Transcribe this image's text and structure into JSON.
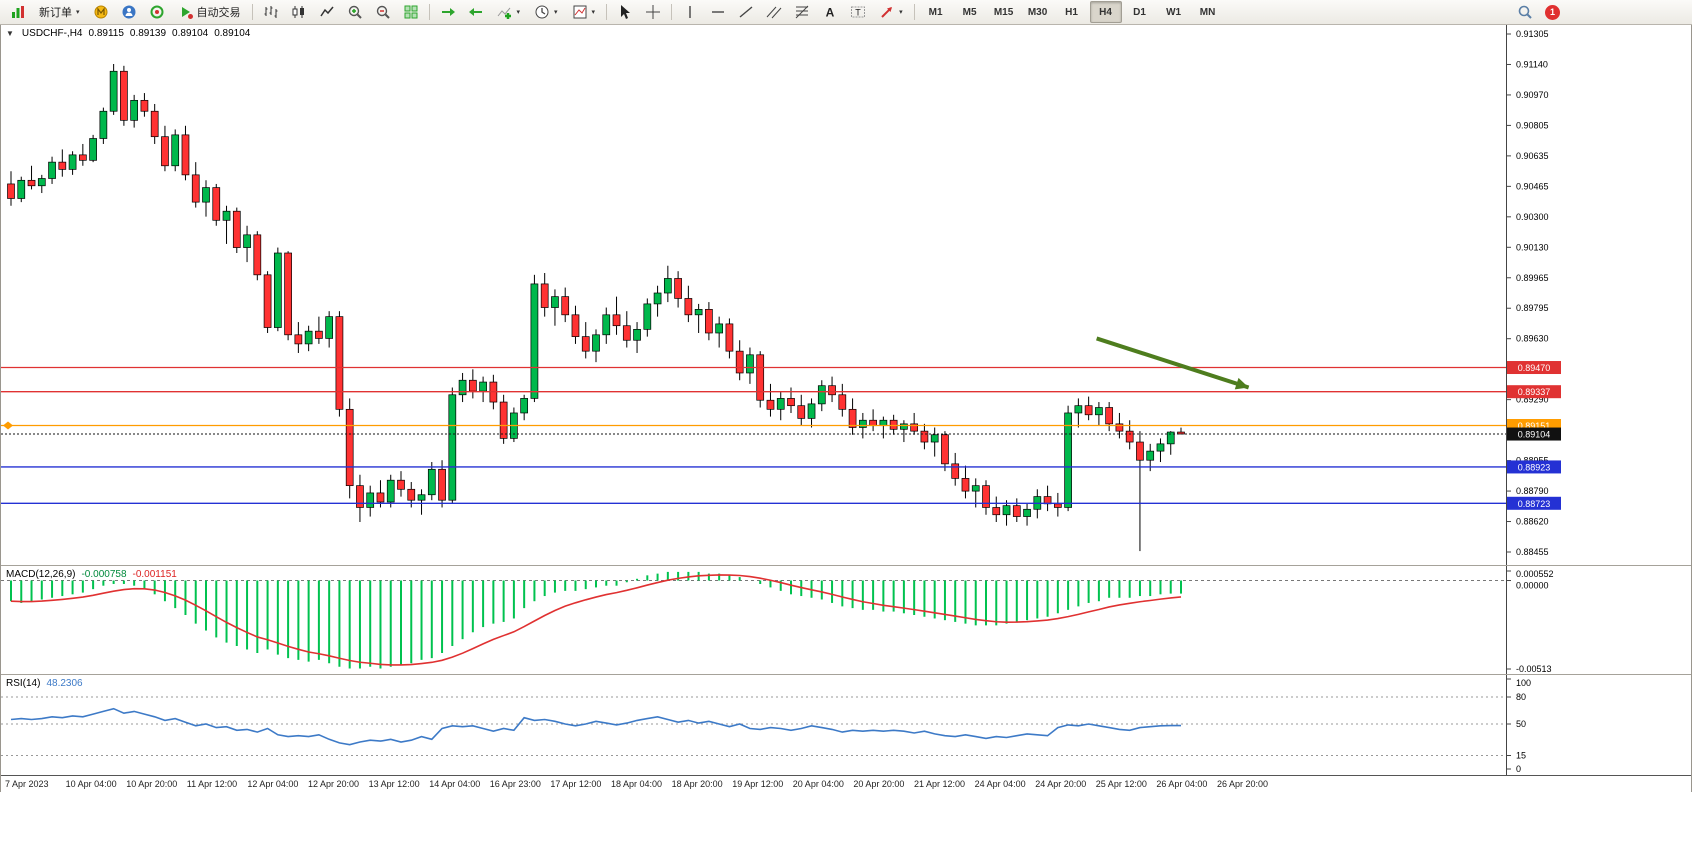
{
  "ui": {
    "caret": "▾",
    "symbol_dropdown": "▼"
  },
  "toolbar": {
    "new_order_label": "新订单",
    "autotrade_label": "自动交易",
    "timeframes": [
      "M1",
      "M5",
      "M15",
      "M30",
      "H1",
      "H4",
      "D1",
      "W1",
      "MN"
    ],
    "active_timeframe": "H4",
    "notification_count": "1",
    "icon_names": [
      "new-order-chart-icon",
      "mql-icon",
      "community-icon",
      "support-icon",
      "autotrade-icon",
      "bar-chart-icon",
      "candlestick-chart-icon",
      "line-chart-icon",
      "zoom-in-icon",
      "zoom-out-icon",
      "tile-windows-icon",
      "auto-scroll-icon",
      "chart-shift-icon",
      "indicators-icon",
      "periods-icon",
      "templates-icon",
      "cursor-icon",
      "crosshair-icon",
      "vertical-line-icon",
      "horizontal-line-icon",
      "trendline-icon",
      "channel-icon",
      "fibonacci-icon",
      "text-icon",
      "text-label-icon",
      "arrows-icon",
      "search-icon",
      "notification-badge"
    ]
  },
  "chart": {
    "symbol": "USDCHF-,H4",
    "ohlc": {
      "open": "0.89115",
      "high": "0.89139",
      "low": "0.89104",
      "close": "0.89104"
    }
  },
  "colors": {
    "candle_up": "#00b84c",
    "candle_down": "#ff3232",
    "candle_border": "#000000",
    "macd_histogram": "#00c24f",
    "macd_signal": "#e03131",
    "rsi_line": "#3d7ac7",
    "arrow": "#4e7d1e",
    "resistance_red": "#e03232",
    "order_orange": "#ff9c00",
    "support_blue": "#2431d4",
    "bid_black": "#111111"
  },
  "chart_data": {
    "type": "candlestick",
    "symbol": "USDCHF-",
    "timeframe": "H4",
    "price_scale": {
      "min": 0.88455,
      "max": 0.91305,
      "labels": [
        "0.91305",
        "0.91140",
        "0.90970",
        "0.90805",
        "0.90635",
        "0.90465",
        "0.90300",
        "0.90130",
        "0.89965",
        "0.89795",
        "0.89630",
        "0.89460",
        "0.89290",
        "0.89125",
        "0.88955",
        "0.88790",
        "0.88620",
        "0.88455"
      ]
    },
    "candles": [
      [
        0.9048,
        0.9055,
        0.9036,
        0.904
      ],
      [
        0.904,
        0.9052,
        0.9038,
        0.905
      ],
      [
        0.905,
        0.9058,
        0.9045,
        0.9047
      ],
      [
        0.9047,
        0.9053,
        0.9043,
        0.9051
      ],
      [
        0.9051,
        0.9063,
        0.9048,
        0.906
      ],
      [
        0.906,
        0.9067,
        0.9052,
        0.9056
      ],
      [
        0.9056,
        0.9066,
        0.9053,
        0.9064
      ],
      [
        0.9064,
        0.907,
        0.9058,
        0.9061
      ],
      [
        0.9061,
        0.9075,
        0.906,
        0.9073
      ],
      [
        0.9073,
        0.909,
        0.907,
        0.9088
      ],
      [
        0.9088,
        0.9114,
        0.9086,
        0.911
      ],
      [
        0.911,
        0.9113,
        0.908,
        0.9083
      ],
      [
        0.9083,
        0.9097,
        0.9079,
        0.9094
      ],
      [
        0.9094,
        0.9098,
        0.9085,
        0.9088
      ],
      [
        0.9088,
        0.9092,
        0.907,
        0.9074
      ],
      [
        0.9074,
        0.908,
        0.9055,
        0.9058
      ],
      [
        0.9058,
        0.9078,
        0.9055,
        0.9075
      ],
      [
        0.9075,
        0.908,
        0.905,
        0.9053
      ],
      [
        0.9053,
        0.906,
        0.9035,
        0.9038
      ],
      [
        0.9038,
        0.905,
        0.903,
        0.9046
      ],
      [
        0.9046,
        0.9048,
        0.9025,
        0.9028
      ],
      [
        0.9028,
        0.9036,
        0.9015,
        0.9033
      ],
      [
        0.9033,
        0.9035,
        0.901,
        0.9013
      ],
      [
        0.9013,
        0.9025,
        0.9005,
        0.902
      ],
      [
        0.902,
        0.9022,
        0.8995,
        0.8998
      ],
      [
        0.8998,
        0.9,
        0.8966,
        0.8969
      ],
      [
        0.8969,
        0.9013,
        0.8967,
        0.901
      ],
      [
        0.901,
        0.9011,
        0.8962,
        0.8965
      ],
      [
        0.8965,
        0.8972,
        0.8955,
        0.896
      ],
      [
        0.896,
        0.897,
        0.8956,
        0.8967
      ],
      [
        0.8967,
        0.8975,
        0.896,
        0.8963
      ],
      [
        0.8963,
        0.8978,
        0.8958,
        0.8975
      ],
      [
        0.8975,
        0.8978,
        0.892,
        0.8924
      ],
      [
        0.8924,
        0.893,
        0.8875,
        0.8882
      ],
      [
        0.8882,
        0.8888,
        0.8862,
        0.887
      ],
      [
        0.887,
        0.8882,
        0.8865,
        0.8878
      ],
      [
        0.8878,
        0.8885,
        0.887,
        0.8873
      ],
      [
        0.8873,
        0.8888,
        0.887,
        0.8885
      ],
      [
        0.8885,
        0.889,
        0.8876,
        0.888
      ],
      [
        0.888,
        0.8884,
        0.887,
        0.8874
      ],
      [
        0.8874,
        0.888,
        0.8866,
        0.8877
      ],
      [
        0.8877,
        0.8895,
        0.8874,
        0.8891
      ],
      [
        0.8891,
        0.8896,
        0.887,
        0.8874
      ],
      [
        0.8874,
        0.8936,
        0.8872,
        0.8932
      ],
      [
        0.8932,
        0.8944,
        0.8928,
        0.894
      ],
      [
        0.894,
        0.8946,
        0.893,
        0.8934
      ],
      [
        0.8934,
        0.8942,
        0.8928,
        0.8939
      ],
      [
        0.8939,
        0.8943,
        0.8924,
        0.8928
      ],
      [
        0.8928,
        0.8932,
        0.8905,
        0.8908
      ],
      [
        0.8908,
        0.8925,
        0.8906,
        0.8922
      ],
      [
        0.8922,
        0.8932,
        0.8918,
        0.893
      ],
      [
        0.893,
        0.8998,
        0.8928,
        0.8993
      ],
      [
        0.8993,
        0.8999,
        0.8975,
        0.898
      ],
      [
        0.898,
        0.899,
        0.897,
        0.8986
      ],
      [
        0.8986,
        0.8991,
        0.8972,
        0.8976
      ],
      [
        0.8976,
        0.8981,
        0.896,
        0.8964
      ],
      [
        0.8964,
        0.8972,
        0.8952,
        0.8956
      ],
      [
        0.8956,
        0.8968,
        0.895,
        0.8965
      ],
      [
        0.8965,
        0.898,
        0.896,
        0.8976
      ],
      [
        0.8976,
        0.8986,
        0.8965,
        0.897
      ],
      [
        0.897,
        0.8978,
        0.8958,
        0.8962
      ],
      [
        0.8962,
        0.8972,
        0.8955,
        0.8968
      ],
      [
        0.8968,
        0.8985,
        0.8964,
        0.8982
      ],
      [
        0.8982,
        0.8992,
        0.8975,
        0.8988
      ],
      [
        0.8988,
        0.9003,
        0.8983,
        0.8996
      ],
      [
        0.8996,
        0.9,
        0.898,
        0.8985
      ],
      [
        0.8985,
        0.8992,
        0.8972,
        0.8976
      ],
      [
        0.8976,
        0.8982,
        0.8966,
        0.8979
      ],
      [
        0.8979,
        0.8983,
        0.8962,
        0.8966
      ],
      [
        0.8966,
        0.8975,
        0.8958,
        0.8971
      ],
      [
        0.8971,
        0.8974,
        0.8952,
        0.8956
      ],
      [
        0.8956,
        0.8962,
        0.894,
        0.8944
      ],
      [
        0.8944,
        0.8958,
        0.8938,
        0.8954
      ],
      [
        0.8954,
        0.8956,
        0.8925,
        0.8929
      ],
      [
        0.8929,
        0.8938,
        0.892,
        0.8924
      ],
      [
        0.8924,
        0.8934,
        0.8918,
        0.893
      ],
      [
        0.893,
        0.8936,
        0.8922,
        0.8926
      ],
      [
        0.8926,
        0.8932,
        0.8915,
        0.8919
      ],
      [
        0.8919,
        0.893,
        0.8914,
        0.8927
      ],
      [
        0.8927,
        0.894,
        0.8923,
        0.8937
      ],
      [
        0.8937,
        0.8942,
        0.8928,
        0.8932
      ],
      [
        0.8932,
        0.8938,
        0.892,
        0.8924
      ],
      [
        0.8924,
        0.893,
        0.891,
        0.8914
      ],
      [
        0.8914,
        0.8922,
        0.8908,
        0.8918
      ],
      [
        0.8918,
        0.8924,
        0.8912,
        0.8915
      ],
      [
        0.8915,
        0.892,
        0.8908,
        0.8918
      ],
      [
        0.8918,
        0.8921,
        0.891,
        0.8913
      ],
      [
        0.8913,
        0.8918,
        0.8906,
        0.8916
      ],
      [
        0.8916,
        0.8922,
        0.891,
        0.8912
      ],
      [
        0.8912,
        0.8916,
        0.8902,
        0.8906
      ],
      [
        0.8906,
        0.8914,
        0.8898,
        0.891
      ],
      [
        0.891,
        0.8912,
        0.889,
        0.8894
      ],
      [
        0.8894,
        0.89,
        0.8882,
        0.8886
      ],
      [
        0.8886,
        0.8893,
        0.8875,
        0.8879
      ],
      [
        0.8879,
        0.8886,
        0.887,
        0.8882
      ],
      [
        0.8882,
        0.8885,
        0.8866,
        0.887
      ],
      [
        0.887,
        0.8876,
        0.8862,
        0.8866
      ],
      [
        0.8866,
        0.8874,
        0.886,
        0.8871
      ],
      [
        0.8871,
        0.8875,
        0.8862,
        0.8865
      ],
      [
        0.8865,
        0.8872,
        0.886,
        0.8869
      ],
      [
        0.8869,
        0.888,
        0.8864,
        0.8876
      ],
      [
        0.8876,
        0.8882,
        0.8868,
        0.8872
      ],
      [
        0.8872,
        0.8878,
        0.8865,
        0.887
      ],
      [
        0.887,
        0.8926,
        0.8868,
        0.8922
      ],
      [
        0.8922,
        0.893,
        0.8914,
        0.8926
      ],
      [
        0.8926,
        0.8931,
        0.8918,
        0.8921
      ],
      [
        0.8921,
        0.8928,
        0.8915,
        0.8925
      ],
      [
        0.8925,
        0.8928,
        0.8912,
        0.8916
      ],
      [
        0.8916,
        0.8922,
        0.8908,
        0.8912
      ],
      [
        0.8912,
        0.8918,
        0.8902,
        0.8906
      ],
      [
        0.8906,
        0.8912,
        0.8846,
        0.8896
      ],
      [
        0.8896,
        0.8905,
        0.889,
        0.8901
      ],
      [
        0.8901,
        0.8908,
        0.8895,
        0.8905
      ],
      [
        0.8905,
        0.8912,
        0.8899,
        0.89115
      ],
      [
        0.89115,
        0.89139,
        0.89104,
        0.89104
      ]
    ],
    "hlines": [
      {
        "price": 0.8947,
        "label": "0.89470",
        "color": "#e03232",
        "style": "solid"
      },
      {
        "price": 0.89337,
        "label": "0.89337",
        "color": "#e03232",
        "style": "solid"
      },
      {
        "price": 0.89151,
        "label": "0.89151",
        "color": "#ff9c00",
        "style": "solid"
      },
      {
        "price": 0.89104,
        "label": "0.89104",
        "color": "#111111",
        "style": "dotted"
      },
      {
        "price": 0.88923,
        "label": "0.88923",
        "color": "#2431d4",
        "style": "solid"
      },
      {
        "price": 0.88723,
        "label": "0.88723",
        "color": "#2431d4",
        "style": "solid"
      }
    ],
    "arrow": {
      "from_price": 0.8963,
      "to_price": 0.8936,
      "from_x_frac": 0.728,
      "to_x_frac": 0.829,
      "color": "#4e7d1e"
    },
    "time_labels": [
      "7 Apr 2023",
      "10 Apr 04:00",
      "10 Apr 20:00",
      "11 Apr 12:00",
      "12 Apr 04:00",
      "12 Apr 20:00",
      "13 Apr 12:00",
      "14 Apr 04:00",
      "16 Apr 23:00",
      "17 Apr 12:00",
      "18 Apr 04:00",
      "18 Apr 20:00",
      "19 Apr 12:00",
      "20 Apr 04:00",
      "20 Apr 20:00",
      "21 Apr 12:00",
      "24 Apr 04:00",
      "24 Apr 20:00",
      "25 Apr 12:00",
      "26 Apr 04:00",
      "26 Apr 20:00"
    ],
    "macd": {
      "name": "MACD(12,26,9)",
      "value": "-0.000758",
      "signal_value": "-0.001151",
      "max": 0.000552,
      "min": -0.00513,
      "scale_labels": [
        {
          "text": "0.000552",
          "value": 0.000552
        },
        {
          "text": "0.00000",
          "value": 0
        },
        {
          "text": "-0.00513",
          "value": -0.00513
        }
      ],
      "histogram": [
        -0.0012,
        -0.0013,
        -0.0012,
        -0.0011,
        -0.001,
        -0.0009,
        -0.0008,
        -0.0007,
        -0.0005,
        -0.0003,
        -0.0002,
        -0.0002,
        -0.0003,
        -0.0005,
        -0.0008,
        -0.0012,
        -0.0016,
        -0.002,
        -0.0025,
        -0.0029,
        -0.0033,
        -0.0036,
        -0.0038,
        -0.004,
        -0.0042,
        -0.004,
        -0.0043,
        -0.0045,
        -0.0046,
        -0.0047,
        -0.0046,
        -0.0048,
        -0.005,
        -0.0051,
        -0.0051,
        -0.005,
        -0.0051,
        -0.005,
        -0.0049,
        -0.0048,
        -0.0046,
        -0.0045,
        -0.0042,
        -0.0038,
        -0.0034,
        -0.003,
        -0.0027,
        -0.0025,
        -0.0024,
        -0.0022,
        -0.0016,
        -0.0012,
        -0.0009,
        -0.0007,
        -0.0006,
        -0.0006,
        -0.0005,
        -0.0004,
        -0.0003,
        -0.0003,
        -0.0001,
        0.0001,
        0.0003,
        0.0004,
        0.0005,
        0.0005,
        0.0005,
        0.0005,
        0.0004,
        0.0004,
        0.0003,
        0.0002,
        0.0,
        -0.0002,
        -0.0004,
        -0.0006,
        -0.0008,
        -0.0009,
        -0.001,
        -0.0011,
        -0.0013,
        -0.0015,
        -0.0016,
        -0.0017,
        -0.0017,
        -0.0018,
        -0.0018,
        -0.0019,
        -0.002,
        -0.0021,
        -0.0022,
        -0.0023,
        -0.0024,
        -0.0025,
        -0.0026,
        -0.0026,
        -0.0026,
        -0.0025,
        -0.0024,
        -0.0023,
        -0.0022,
        -0.0021,
        -0.0019,
        -0.0017,
        -0.0015,
        -0.0013,
        -0.0012,
        -0.001,
        -0.001,
        -0.001,
        -0.0009,
        -0.0009,
        -0.0008,
        -0.000758,
        -0.000758
      ]
    },
    "rsi": {
      "name": "RSI(14)",
      "value": "48.2306",
      "levels": [
        80,
        50,
        15
      ],
      "scale_labels": [
        {
          "text": "100",
          "value": 100
        },
        {
          "text": "80",
          "value": 80
        },
        {
          "text": "50",
          "value": 50
        },
        {
          "text": "15",
          "value": 15
        },
        {
          "text": "0",
          "value": 0
        }
      ],
      "values": [
        55,
        56,
        55,
        56,
        58,
        57,
        59,
        58,
        61,
        64,
        67,
        62,
        64,
        61,
        58,
        54,
        56,
        52,
        48,
        50,
        46,
        47,
        43,
        44,
        41,
        45,
        38,
        36,
        37,
        36,
        38,
        33,
        29,
        27,
        30,
        32,
        31,
        33,
        30,
        32,
        36,
        33,
        45,
        48,
        47,
        48,
        45,
        42,
        45,
        43,
        57,
        54,
        55,
        53,
        50,
        48,
        50,
        53,
        51,
        49,
        51,
        54,
        56,
        58,
        55,
        52,
        54,
        51,
        53,
        50,
        47,
        50,
        45,
        44,
        46,
        45,
        43,
        45,
        48,
        46,
        44,
        41,
        43,
        42,
        43,
        42,
        43,
        42,
        40,
        42,
        39,
        37,
        36,
        38,
        36,
        34,
        36,
        35,
        37,
        39,
        38,
        37,
        46,
        49,
        48,
        50,
        48,
        46,
        44,
        43,
        46,
        47,
        48,
        48.23,
        48.23
      ]
    }
  }
}
